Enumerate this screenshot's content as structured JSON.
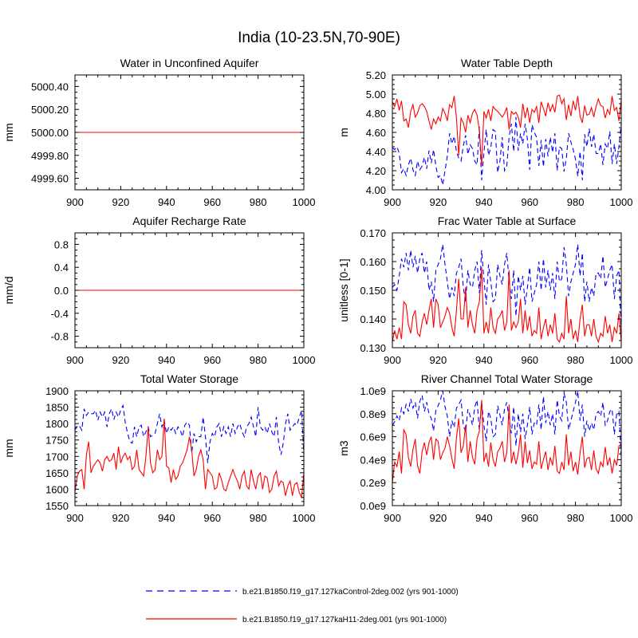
{
  "figure_title": "India (10-23.5N,70-90E)",
  "colors": {
    "control": "#0000ff",
    "h11": "#ff0000"
  },
  "legend": [
    {
      "key": "control",
      "label": "b.e21.B1850.f19_g17.127kaControl-2deg.002 (yrs 901-1000)",
      "style": "dashed"
    },
    {
      "key": "h11",
      "label": "b.e21.B1850.f19_g17.127kaH11-2deg.001 (yrs 901-1000)",
      "style": "solid"
    }
  ],
  "chart_data": [
    {
      "id": "water-unconfined-aquifer",
      "type": "line",
      "title": "Water in Unconfined Aquifer",
      "ylabel": "mm",
      "xlabel": "",
      "xlim": [
        900,
        1000
      ],
      "ylim": [
        4999.5,
        5000.5
      ],
      "xticks": [
        900,
        920,
        940,
        960,
        980,
        1000
      ],
      "yticks": [
        4999.6,
        4999.8,
        5000.0,
        5000.2,
        5000.4
      ],
      "ytick_labels": [
        "4999.60",
        "4999.80",
        "5000.00",
        "5000.20",
        "5000.40"
      ],
      "series": [
        {
          "name": "control",
          "constant": 5000
        },
        {
          "name": "h11",
          "constant": 5000
        }
      ]
    },
    {
      "id": "water-table-depth",
      "type": "line",
      "title": "Water Table Depth",
      "ylabel": "m",
      "xlabel": "",
      "xlim": [
        900,
        1000
      ],
      "ylim": [
        4.0,
        5.2
      ],
      "xticks": [
        900,
        920,
        940,
        960,
        980,
        1000
      ],
      "yticks": [
        4.0,
        4.2,
        4.4,
        4.6,
        4.8,
        5.0,
        5.2
      ],
      "ytick_labels": [
        "4.00",
        "4.20",
        "4.40",
        "4.60",
        "4.80",
        "5.00",
        "5.20"
      ],
      "series": [
        {
          "name": "control",
          "values": [
            4.44,
            4.42,
            4.45,
            4.38,
            4.18,
            4.22,
            4.15,
            4.26,
            4.33,
            4.21,
            4.15,
            4.3,
            4.21,
            4.25,
            4.34,
            4.22,
            4.41,
            4.28,
            4.42,
            4.25,
            4.13,
            4.15,
            4.05,
            4.2,
            4.35,
            4.59,
            4.48,
            4.56,
            4.4,
            4.33,
            4.3,
            4.46,
            4.57,
            4.37,
            4.47,
            4.43,
            4.3,
            4.26,
            4.66,
            4.1,
            4.39,
            4.63,
            4.36,
            4.44,
            4.63,
            4.61,
            4.18,
            4.3,
            4.55,
            4.2,
            4.25,
            4.55,
            4.69,
            4.4,
            4.76,
            4.41,
            4.59,
            4.48,
            4.69,
            4.53,
            4.21,
            4.68,
            4.6,
            4.55,
            4.25,
            4.52,
            4.24,
            4.53,
            4.35,
            4.55,
            4.39,
            4.59,
            4.2,
            4.45,
            4.43,
            4.19,
            4.33,
            4.59,
            4.5,
            4.42,
            4.32,
            4.14,
            4.4,
            4.1,
            4.58,
            4.45,
            4.64,
            4.45,
            4.58,
            4.38,
            4.38,
            4.48,
            4.26,
            4.48,
            4.43,
            4.61,
            4.27,
            4.48,
            4.27,
            4.45,
            4.7
          ]
        },
        {
          "name": "h11",
          "values": [
            4.92,
            4.87,
            4.95,
            4.83,
            4.93,
            4.72,
            4.74,
            4.65,
            4.82,
            4.89,
            4.76,
            4.8,
            4.88,
            4.9,
            4.87,
            4.82,
            4.72,
            4.63,
            4.74,
            4.69,
            4.76,
            4.72,
            4.85,
            4.8,
            4.72,
            4.89,
            4.86,
            4.98,
            4.75,
            4.36,
            4.75,
            4.7,
            4.6,
            4.78,
            4.7,
            4.8,
            4.84,
            4.78,
            4.62,
            4.25,
            4.82,
            4.75,
            4.84,
            4.72,
            4.87,
            4.84,
            4.82,
            4.79,
            4.76,
            4.8,
            4.86,
            4.63,
            4.82,
            4.79,
            4.81,
            4.76,
            4.65,
            4.9,
            4.75,
            4.86,
            4.7,
            4.84,
            4.81,
            4.87,
            4.7,
            4.92,
            4.85,
            4.77,
            4.91,
            4.82,
            4.89,
            4.81,
            4.98,
            4.99,
            4.9,
            4.95,
            4.73,
            4.89,
            4.77,
            4.93,
            4.83,
            4.98,
            4.77,
            4.7,
            4.88,
            4.78,
            4.79,
            4.86,
            4.76,
            4.87,
            4.95,
            4.88,
            4.87,
            4.75,
            4.84,
            4.79,
            4.98,
            4.83,
            4.86,
            4.72,
            4.94
          ]
        }
      ]
    },
    {
      "id": "aquifer-recharge-rate",
      "type": "line",
      "title": "Aquifer Recharge Rate",
      "ylabel": "mm/d",
      "xlabel": "",
      "xlim": [
        900,
        1000
      ],
      "ylim": [
        -1.0,
        1.0
      ],
      "xticks": [
        900,
        920,
        940,
        960,
        980,
        1000
      ],
      "yticks": [
        -0.8,
        -0.4,
        0.0,
        0.4,
        0.8
      ],
      "ytick_labels": [
        "-0.8",
        "-0.4",
        "0.0",
        "0.4",
        "0.8"
      ],
      "series": [
        {
          "name": "control",
          "constant": 0
        },
        {
          "name": "h11",
          "constant": 0
        }
      ]
    },
    {
      "id": "frac-water-table-surface",
      "type": "line",
      "title": "Frac Water Table at Surface",
      "ylabel": "unitless [0-1]",
      "xlabel": "",
      "xlim": [
        900,
        1000
      ],
      "ylim": [
        0.13,
        0.17
      ],
      "xticks": [
        900,
        920,
        940,
        960,
        980,
        1000
      ],
      "yticks": [
        0.13,
        0.14,
        0.15,
        0.16,
        0.17
      ],
      "ytick_labels": [
        "0.130",
        "0.140",
        "0.150",
        "0.160",
        "0.170"
      ],
      "series": [
        {
          "name": "control",
          "values": [
            0.151,
            0.152,
            0.15,
            0.155,
            0.161,
            0.158,
            0.163,
            0.157,
            0.164,
            0.158,
            0.162,
            0.156,
            0.161,
            0.163,
            0.156,
            0.16,
            0.15,
            0.153,
            0.146,
            0.157,
            0.159,
            0.161,
            0.166,
            0.159,
            0.153,
            0.147,
            0.151,
            0.148,
            0.156,
            0.158,
            0.161,
            0.151,
            0.146,
            0.157,
            0.152,
            0.151,
            0.157,
            0.16,
            0.149,
            0.164,
            0.154,
            0.145,
            0.159,
            0.153,
            0.146,
            0.147,
            0.159,
            0.155,
            0.152,
            0.159,
            0.163,
            0.153,
            0.147,
            0.157,
            0.141,
            0.155,
            0.15,
            0.155,
            0.145,
            0.151,
            0.158,
            0.146,
            0.149,
            0.152,
            0.16,
            0.15,
            0.161,
            0.151,
            0.157,
            0.15,
            0.156,
            0.147,
            0.16,
            0.153,
            0.154,
            0.165,
            0.159,
            0.148,
            0.153,
            0.156,
            0.159,
            0.166,
            0.155,
            0.163,
            0.146,
            0.153,
            0.146,
            0.151,
            0.148,
            0.156,
            0.156,
            0.154,
            0.162,
            0.151,
            0.154,
            0.157,
            0.159,
            0.147,
            0.155,
            0.157,
            0.136
          ]
        },
        {
          "name": "h11",
          "values": [
            0.132,
            0.136,
            0.133,
            0.137,
            0.133,
            0.146,
            0.145,
            0.138,
            0.135,
            0.141,
            0.143,
            0.135,
            0.134,
            0.139,
            0.142,
            0.138,
            0.143,
            0.147,
            0.137,
            0.147,
            0.145,
            0.137,
            0.139,
            0.141,
            0.144,
            0.142,
            0.137,
            0.134,
            0.143,
            0.154,
            0.14,
            0.14,
            0.151,
            0.137,
            0.143,
            0.138,
            0.135,
            0.143,
            0.146,
            0.158,
            0.135,
            0.139,
            0.135,
            0.144,
            0.137,
            0.135,
            0.14,
            0.141,
            0.143,
            0.136,
            0.139,
            0.157,
            0.136,
            0.139,
            0.137,
            0.139,
            0.147,
            0.135,
            0.143,
            0.136,
            0.141,
            0.134,
            0.136,
            0.135,
            0.144,
            0.133,
            0.137,
            0.14,
            0.134,
            0.138,
            0.135,
            0.142,
            0.133,
            0.132,
            0.135,
            0.133,
            0.148,
            0.135,
            0.14,
            0.133,
            0.136,
            0.132,
            0.14,
            0.145,
            0.134,
            0.138,
            0.138,
            0.134,
            0.14,
            0.134,
            0.132,
            0.135,
            0.134,
            0.141,
            0.135,
            0.138,
            0.132,
            0.137,
            0.135,
            0.142,
            0.132
          ]
        }
      ]
    },
    {
      "id": "total-water-storage",
      "type": "line",
      "title": "Total Water Storage",
      "ylabel": "mm",
      "xlabel": "",
      "xlim": [
        900,
        1000
      ],
      "ylim": [
        1550,
        1900
      ],
      "xticks": [
        900,
        920,
        940,
        960,
        980,
        1000
      ],
      "yticks": [
        1550,
        1600,
        1650,
        1700,
        1750,
        1800,
        1850,
        1900
      ],
      "ytick_labels": [
        "1550",
        "1600",
        "1650",
        "1700",
        "1750",
        "1800",
        "1850",
        "1900"
      ],
      "series": [
        {
          "name": "control",
          "values": [
            1780,
            1795,
            1792,
            1780,
            1845,
            1825,
            1835,
            1830,
            1830,
            1840,
            1810,
            1835,
            1820,
            1835,
            1790,
            1830,
            1845,
            1812,
            1835,
            1820,
            1842,
            1855,
            1802,
            1770,
            1745,
            1740,
            1790,
            1760,
            1790,
            1795,
            1760,
            1775,
            1790,
            1760,
            1765,
            1770,
            1800,
            1830,
            1790,
            1810,
            1770,
            1790,
            1780,
            1790,
            1770,
            1790,
            1780,
            1760,
            1795,
            1805,
            1795,
            1710,
            1770,
            1745,
            1760,
            1760,
            1820,
            1760,
            1680,
            1745,
            1770,
            1760,
            1790,
            1800,
            1760,
            1790,
            1770,
            1790,
            1760,
            1800,
            1770,
            1790,
            1800,
            1775,
            1760,
            1790,
            1800,
            1820,
            1790,
            1760,
            1850,
            1790,
            1780,
            1790,
            1770,
            1800,
            1775,
            1760,
            1820,
            1740,
            1705,
            1740,
            1800,
            1830,
            1780,
            1790,
            1800,
            1795,
            1820,
            1840,
            1705
          ]
        },
        {
          "name": "h11",
          "values": [
            1590,
            1640,
            1655,
            1660,
            1600,
            1705,
            1745,
            1650,
            1670,
            1680,
            1690,
            1680,
            1655,
            1690,
            1700,
            1685,
            1690,
            1710,
            1660,
            1730,
            1680,
            1700,
            1710,
            1690,
            1700,
            1660,
            1670,
            1720,
            1660,
            1650,
            1640,
            1700,
            1790,
            1680,
            1650,
            1660,
            1720,
            1690,
            1700,
            1815,
            1670,
            1665,
            1620,
            1660,
            1630,
            1640,
            1670,
            1680,
            1700,
            1720,
            1760,
            1720,
            1640,
            1660,
            1700,
            1720,
            1690,
            1600,
            1660,
            1650,
            1640,
            1600,
            1605,
            1650,
            1630,
            1600,
            1595,
            1620,
            1640,
            1660,
            1640,
            1625,
            1600,
            1640,
            1655,
            1610,
            1600,
            1660,
            1625,
            1600,
            1640,
            1650,
            1600,
            1640,
            1635,
            1590,
            1600,
            1640,
            1655,
            1610,
            1625,
            1620,
            1580,
            1610,
            1625,
            1580,
            1615,
            1620,
            1590,
            1575,
            1650
          ]
        }
      ]
    },
    {
      "id": "river-channel-storage",
      "type": "line",
      "title": "River Channel Total Water Storage",
      "ylabel": "m3",
      "xlabel": "",
      "xlim": [
        900,
        1000
      ],
      "ylim": [
        0.0,
        1.0
      ],
      "xticks": [
        900,
        920,
        940,
        960,
        980,
        1000
      ],
      "yticks": [
        0.0,
        0.2,
        0.4,
        0.6,
        0.8,
        1.0
      ],
      "ytick_labels": [
        "0.0e9",
        "0.2e9",
        "0.4e9",
        "0.6e9",
        "0.8e9",
        "1.0e9"
      ],
      "series": [
        {
          "name": "control",
          "values": [
            0.7,
            0.73,
            0.78,
            0.74,
            0.85,
            0.8,
            0.88,
            0.82,
            0.93,
            0.85,
            0.9,
            0.76,
            0.91,
            0.96,
            0.82,
            0.9,
            0.8,
            0.76,
            0.65,
            0.83,
            0.87,
            0.92,
            1.0,
            0.86,
            0.78,
            0.6,
            0.74,
            0.68,
            0.85,
            0.88,
            0.92,
            0.7,
            0.64,
            0.84,
            0.78,
            0.7,
            0.86,
            0.92,
            0.66,
            0.9,
            0.7,
            0.56,
            0.82,
            0.76,
            0.6,
            0.62,
            0.87,
            0.79,
            0.7,
            0.84,
            0.9,
            0.75,
            0.63,
            0.86,
            0.52,
            0.8,
            0.64,
            0.8,
            0.58,
            0.7,
            0.86,
            0.62,
            0.72,
            0.7,
            0.88,
            0.66,
            0.95,
            0.72,
            0.82,
            0.7,
            0.8,
            0.62,
            0.92,
            0.78,
            0.74,
            0.98,
            0.9,
            0.66,
            0.74,
            0.82,
            0.9,
            1.0,
            0.74,
            0.88,
            0.6,
            0.74,
            0.65,
            0.72,
            0.66,
            0.8,
            0.82,
            0.78,
            0.9,
            0.7,
            0.74,
            0.82,
            0.84,
            0.62,
            0.8,
            0.82,
            0.4
          ]
        },
        {
          "name": "h11",
          "values": [
            0.2,
            0.38,
            0.34,
            0.47,
            0.28,
            0.66,
            0.62,
            0.42,
            0.34,
            0.49,
            0.58,
            0.35,
            0.28,
            0.47,
            0.55,
            0.44,
            0.55,
            0.6,
            0.4,
            0.58,
            0.56,
            0.4,
            0.46,
            0.5,
            0.6,
            0.52,
            0.41,
            0.32,
            0.59,
            0.76,
            0.46,
            0.52,
            0.7,
            0.38,
            0.56,
            0.42,
            0.36,
            0.58,
            0.65,
            0.92,
            0.38,
            0.46,
            0.34,
            0.55,
            0.4,
            0.34,
            0.47,
            0.5,
            0.56,
            0.38,
            0.46,
            0.88,
            0.37,
            0.47,
            0.36,
            0.46,
            0.62,
            0.33,
            0.56,
            0.37,
            0.48,
            0.32,
            0.38,
            0.36,
            0.56,
            0.32,
            0.4,
            0.47,
            0.31,
            0.42,
            0.35,
            0.52,
            0.3,
            0.28,
            0.38,
            0.31,
            0.62,
            0.35,
            0.47,
            0.3,
            0.38,
            0.27,
            0.46,
            0.6,
            0.33,
            0.41,
            0.42,
            0.31,
            0.48,
            0.32,
            0.28,
            0.38,
            0.34,
            0.51,
            0.35,
            0.42,
            0.28,
            0.4,
            0.35,
            0.52,
            0.53
          ]
        }
      ]
    }
  ]
}
